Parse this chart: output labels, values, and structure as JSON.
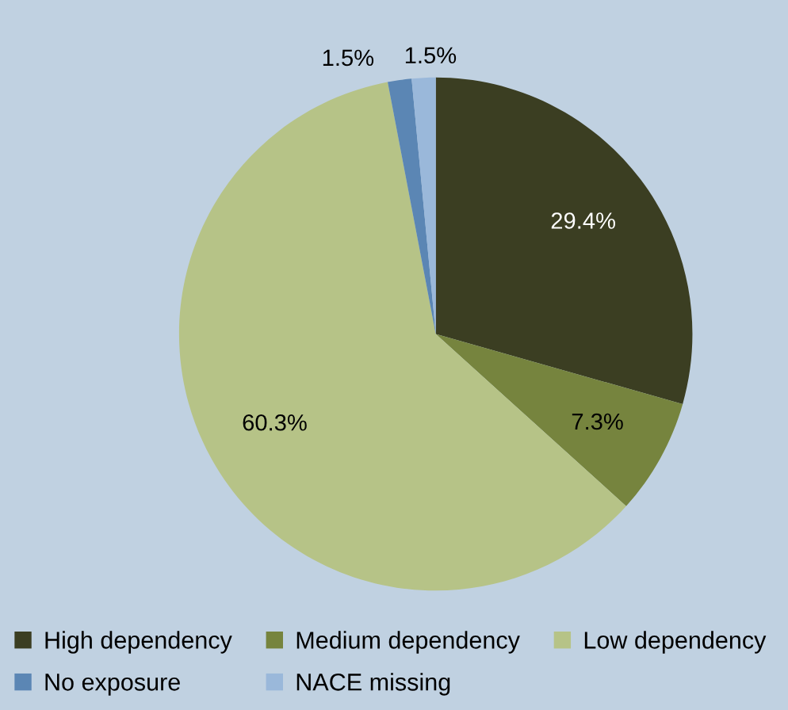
{
  "chart_data": {
    "type": "pie",
    "categories": [
      "High dependency",
      "Medium dependency",
      "Low dependency",
      "No exposure",
      "NACE missing"
    ],
    "values": [
      29.4,
      7.3,
      60.3,
      1.5,
      1.5
    ],
    "colors": [
      "#3b3e22",
      "#76843e",
      "#b6c387",
      "#5b86b4",
      "#9ab8da"
    ],
    "value_labels": [
      "29.4%",
      "7.3%",
      "60.3%",
      "1.5%",
      "1.5%"
    ],
    "legend": "bottom"
  }
}
